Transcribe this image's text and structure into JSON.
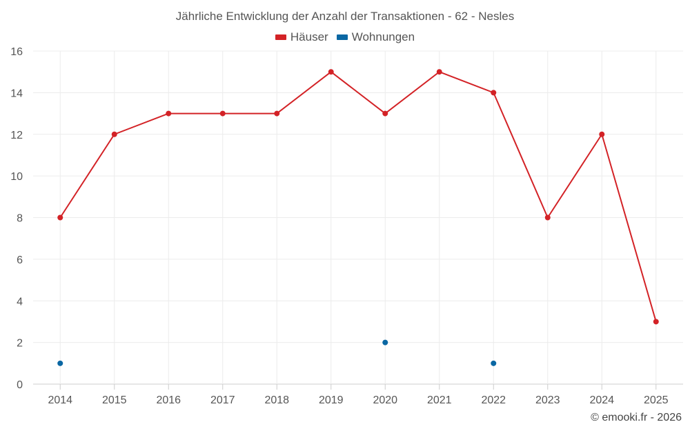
{
  "chart_data": {
    "type": "line",
    "title": "Jährliche Entwicklung der Anzahl der Transaktionen - 62 - Nesles",
    "categories": [
      "2014",
      "2015",
      "2016",
      "2017",
      "2018",
      "2019",
      "2020",
      "2021",
      "2022",
      "2023",
      "2024",
      "2025"
    ],
    "series": [
      {
        "name": "Häuser",
        "color": "#d32226",
        "values": [
          8,
          12,
          13,
          13,
          13,
          15,
          13,
          15,
          14,
          8,
          12,
          3
        ]
      },
      {
        "name": "Wohnungen",
        "color": "#0a67a3",
        "values": [
          1,
          null,
          null,
          null,
          null,
          null,
          2,
          null,
          1,
          null,
          null,
          null
        ]
      }
    ],
    "ylim": [
      0,
      16
    ],
    "yticks": [
      0,
      2,
      4,
      6,
      8,
      10,
      12,
      14,
      16
    ],
    "xlabel": "",
    "ylabel": "",
    "grid": true,
    "legend": "top-center"
  },
  "credit": "© emooki.fr - 2026"
}
